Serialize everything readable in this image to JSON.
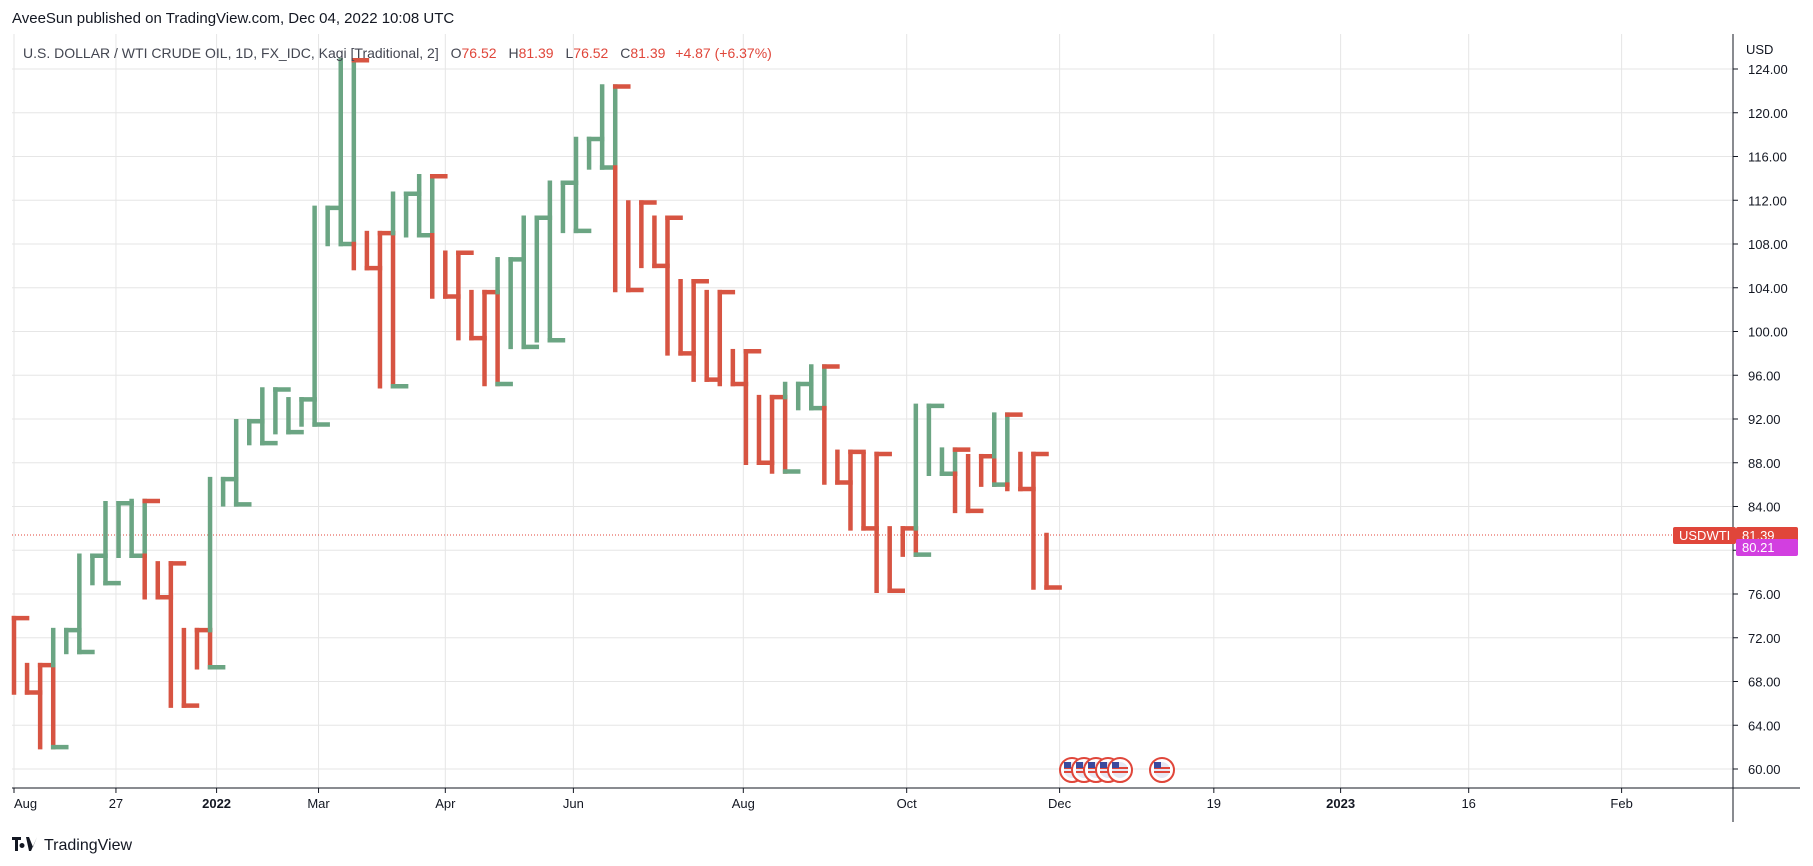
{
  "header": {
    "published": "AveeSun published on TradingView.com, Dec 04, 2022 10:08 UTC"
  },
  "legend": {
    "symbol": "U.S. DOLLAR / WTI CRUDE OIL, 1D, FX_IDC, Kagi [Traditional, 2]",
    "o_label": "O",
    "o_value": "76.52",
    "h_label": "H",
    "h_value": "81.39",
    "l_label": "L",
    "l_value": "76.52",
    "c_label": "C",
    "c_value": "81.39",
    "change": "+4.87 (+6.37%)"
  },
  "price_axis": {
    "unit": "USD"
  },
  "tags": {
    "symbol_tag": "USDWTI",
    "last_price": "81.39",
    "second_price": "80.21"
  },
  "footer": {
    "brand": "TradingView"
  },
  "colors": {
    "up": "#6ba583",
    "down": "#d75442",
    "grid": "#e6e6e6",
    "last_line": "#e0463a",
    "magenta": "#d23fe0"
  },
  "chart_data": {
    "type": "kagi",
    "title": "U.S. DOLLAR / WTI CRUDE OIL, 1D, FX_IDC, Kagi [Traditional, 2]",
    "ylabel": "USD",
    "ylim": [
      58.8,
      125.5
    ],
    "y_ticks": [
      "60.00",
      "64.00",
      "68.00",
      "72.00",
      "76.00",
      "80.00",
      "84.00",
      "88.00",
      "92.00",
      "96.00",
      "100.00",
      "104.00",
      "108.00",
      "112.00",
      "116.00",
      "120.00",
      "124.00"
    ],
    "x_ticks": [
      {
        "label": "Aug",
        "bold": false,
        "pos": 0.0
      },
      {
        "label": "27",
        "bold": false,
        "pos": 7.8
      },
      {
        "label": "2022",
        "bold": true,
        "pos": 15.5
      },
      {
        "label": "Mar",
        "bold": false,
        "pos": 23.3
      },
      {
        "label": "Apr",
        "bold": false,
        "pos": 33.0
      },
      {
        "label": "Jun",
        "bold": false,
        "pos": 42.8
      },
      {
        "label": "Aug",
        "bold": false,
        "pos": 55.8
      },
      {
        "label": "Oct",
        "bold": false,
        "pos": 68.3
      },
      {
        "label": "Dec",
        "bold": false,
        "pos": 80.0
      },
      {
        "label": "19",
        "bold": false,
        "pos": 91.8
      },
      {
        "label": "2023",
        "bold": true,
        "pos": 101.5
      },
      {
        "label": "16",
        "bold": false,
        "pos": 111.3
      },
      {
        "label": "Feb",
        "bold": false,
        "pos": 123.0
      }
    ],
    "last_value": 81.39,
    "second_value": 80.21,
    "start_color": "down",
    "steps": [
      [
        0.0,
        73.8
      ],
      [
        1.0,
        67.0
      ],
      [
        2.0,
        69.5
      ],
      [
        3.0,
        62.0
      ],
      [
        4.0,
        72.7
      ],
      [
        5.0,
        70.7
      ],
      [
        6.0,
        79.5
      ],
      [
        7.0,
        77.0
      ],
      [
        8.0,
        84.3
      ],
      [
        9.0,
        79.5
      ],
      [
        10.0,
        84.5
      ],
      [
        11.0,
        75.7
      ],
      [
        12.0,
        78.8
      ],
      [
        13.0,
        65.8
      ],
      [
        14.0,
        72.7
      ],
      [
        15.0,
        69.3
      ],
      [
        16.0,
        86.5
      ],
      [
        17.0,
        84.2
      ],
      [
        18.0,
        91.8
      ],
      [
        19.0,
        89.8
      ],
      [
        20.0,
        94.7
      ],
      [
        21.0,
        90.8
      ],
      [
        22.0,
        93.8
      ],
      [
        23.0,
        91.5
      ],
      [
        24.0,
        111.3
      ],
      [
        25.0,
        108.0
      ],
      [
        26.0,
        124.8
      ],
      [
        27.0,
        105.8
      ],
      [
        28.0,
        109.0
      ],
      [
        29.0,
        95.0
      ],
      [
        30.0,
        112.6
      ],
      [
        31.0,
        108.8
      ],
      [
        32.0,
        114.2
      ],
      [
        33.0,
        103.2
      ],
      [
        34.0,
        107.2
      ],
      [
        35.0,
        99.4
      ],
      [
        36.0,
        103.6
      ],
      [
        37.0,
        95.2
      ],
      [
        38.0,
        106.6
      ],
      [
        39.0,
        98.6
      ],
      [
        40.0,
        110.4
      ],
      [
        41.0,
        99.2
      ],
      [
        42.0,
        113.6
      ],
      [
        43.0,
        109.2
      ],
      [
        44.0,
        117.6
      ],
      [
        45.0,
        115.0
      ],
      [
        46.0,
        122.4
      ],
      [
        47.0,
        103.8
      ],
      [
        48.0,
        111.8
      ],
      [
        49.0,
        106.0
      ],
      [
        50.0,
        110.4
      ],
      [
        51.0,
        98.0
      ],
      [
        52.0,
        104.6
      ],
      [
        53.0,
        95.6
      ],
      [
        54.0,
        103.6
      ],
      [
        55.0,
        95.2
      ],
      [
        56.0,
        98.2
      ],
      [
        57.0,
        88.0
      ],
      [
        58.0,
        94.0
      ],
      [
        59.0,
        87.2
      ],
      [
        60.0,
        95.2
      ],
      [
        61.0,
        93.0
      ],
      [
        62.0,
        96.8
      ],
      [
        63.0,
        86.2
      ],
      [
        64.0,
        89.0
      ],
      [
        65.0,
        82.0
      ],
      [
        66.0,
        88.8
      ],
      [
        67.0,
        76.3
      ],
      [
        68.0,
        82.0
      ],
      [
        69.0,
        79.6
      ],
      [
        70.0,
        93.2
      ],
      [
        71.0,
        87.0
      ],
      [
        72.0,
        89.2
      ],
      [
        73.0,
        83.6
      ],
      [
        74.0,
        88.6
      ],
      [
        75.0,
        86.0
      ],
      [
        76.0,
        92.4
      ],
      [
        77.0,
        85.6
      ],
      [
        78.0,
        88.8
      ],
      [
        79.0,
        76.6
      ],
      [
        80.0,
        81.4
      ]
    ]
  }
}
